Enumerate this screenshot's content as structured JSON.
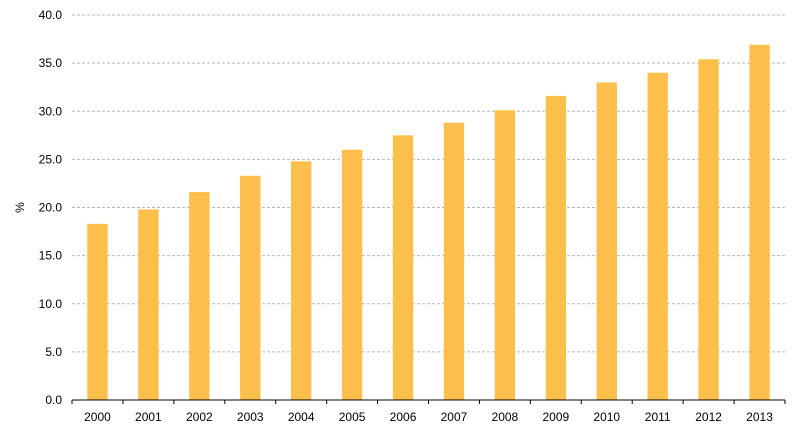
{
  "chart_data": {
    "type": "bar",
    "title": "",
    "xlabel": "",
    "ylabel": "%",
    "categories": [
      "2000",
      "2001",
      "2002",
      "2003",
      "2004",
      "2005",
      "2006",
      "2007",
      "2008",
      "2009",
      "2010",
      "2011",
      "2012",
      "2013"
    ],
    "values": [
      18.3,
      19.8,
      21.6,
      23.3,
      24.8,
      26.0,
      27.5,
      28.8,
      30.1,
      31.6,
      33.0,
      34.0,
      35.4,
      36.9
    ],
    "ylim": [
      0,
      40
    ],
    "yticks": [
      "0.0",
      "5.0",
      "10.0",
      "15.0",
      "20.0",
      "25.0",
      "30.0",
      "35.0",
      "40.0"
    ],
    "grid": true,
    "gridline_style": "dashed",
    "legend": "none",
    "colors": {
      "bar": "#FDBF4B",
      "grid": "#B8B8B8",
      "axis": "#000000",
      "text": "#000000"
    }
  }
}
